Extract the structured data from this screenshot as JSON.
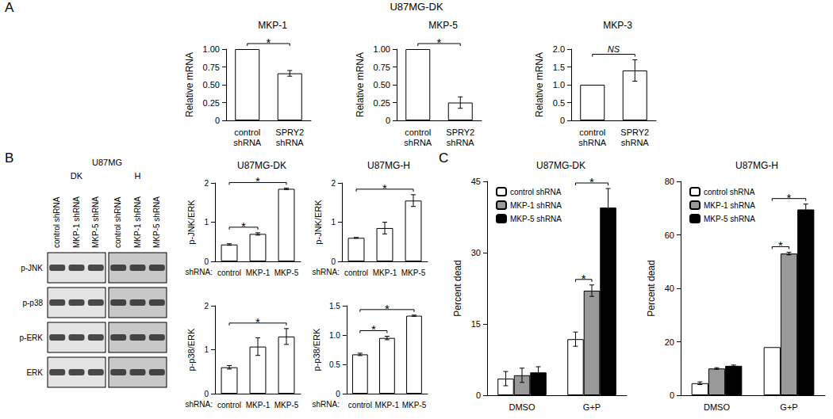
{
  "chart_data": [
    {
      "type": "bar",
      "title": "MKP-1",
      "y_label": "Relative mRNA",
      "categories": [
        "control shRNA",
        "SPRY2 shRNA"
      ],
      "values": [
        1.0,
        0.66
      ],
      "errors": [
        0,
        0.04
      ],
      "color": "#ffffff",
      "ylim": [
        0,
        1
      ],
      "yticks": [
        0,
        0.25,
        {
          "value": 0.5,
          "label": "0.50"
        },
        0.75,
        {
          "value": 1,
          "label": "1.00"
        }
      ],
      "grid": false,
      "annotations": [
        {
          "text": "*",
          "from": "control shRNA",
          "to": "SPRY2 shRNA"
        }
      ]
    },
    {
      "type": "bar",
      "title": "MKP-5",
      "y_label": "Relative mRNA",
      "categories": [
        "control shRNA",
        "SPRY2 shRNA"
      ],
      "values": [
        1.0,
        0.25
      ],
      "errors": [
        0,
        0.08
      ],
      "color": "#ffffff",
      "ylim": [
        0,
        1
      ],
      "yticks": [
        0,
        0.25,
        {
          "value": 0.5,
          "label": "0.50"
        },
        0.75,
        {
          "value": 1,
          "label": "1.00"
        }
      ],
      "grid": false,
      "annotations": [
        {
          "text": "*",
          "from": "control shRNA",
          "to": "SPRY2 shRNA"
        }
      ]
    },
    {
      "type": "bar",
      "title": "MKP-3",
      "y_label": "Relative mRNA",
      "categories": [
        "control shRNA",
        "SPRY2 shRNA"
      ],
      "values": [
        1.0,
        1.4
      ],
      "errors": [
        0,
        0.3
      ],
      "color": "#ffffff",
      "ylim": [
        0,
        2
      ],
      "yticks": [
        0,
        0.5,
        {
          "value": 1,
          "label": "1.0"
        },
        1.5,
        {
          "value": 2,
          "label": "2.0"
        }
      ],
      "grid": false,
      "annotations": [
        {
          "text": "NS",
          "from": "control shRNA",
          "to": "SPRY2 shRNA"
        }
      ]
    },
    {
      "type": "bar",
      "title": "U87MG-DK",
      "y_label": "p-JNK/ERK",
      "x_label": "shRNA:",
      "categories": [
        "control",
        "MKP-1",
        "MKP-5"
      ],
      "values": [
        0.43,
        0.7,
        1.85
      ],
      "errors": [
        0.02,
        0.03,
        0.02
      ],
      "color": "#ffffff",
      "ylim": [
        0,
        2
      ],
      "yticks": [
        0,
        1,
        2
      ],
      "grid": false,
      "annotations": [
        {
          "text": "*",
          "from": "control",
          "to": "MKP-1"
        },
        {
          "text": "*",
          "from": "control",
          "to": "MKP-5"
        }
      ]
    },
    {
      "type": "bar",
      "title": "U87MG-H",
      "y_label": "p-JNK/ERK",
      "x_label": "shRNA:",
      "categories": [
        "control",
        "MKP-1",
        "MKP-5"
      ],
      "values": [
        0.6,
        0.85,
        1.55
      ],
      "errors": [
        0.01,
        0.15,
        0.15
      ],
      "color": "#ffffff",
      "ylim": [
        0,
        2
      ],
      "yticks": [
        0,
        1,
        2
      ],
      "grid": false,
      "annotations": [
        {
          "text": "*",
          "from": "control",
          "to": "MKP-5"
        }
      ]
    },
    {
      "type": "bar",
      "y_label": "p-p38/ERK",
      "x_label": "shRNA:",
      "categories": [
        "control",
        "MKP-1",
        "MKP-5"
      ],
      "values": [
        0.6,
        1.07,
        1.3
      ],
      "errors": [
        0.04,
        0.2,
        0.18
      ],
      "color": "#ffffff",
      "ylim": [
        0,
        2
      ],
      "yticks": [
        0,
        1,
        2
      ],
      "grid": false,
      "annotations": [
        {
          "text": "*",
          "from": "control",
          "to": "MKP-5"
        }
      ]
    },
    {
      "type": "bar",
      "y_label": "p-p38/ERK",
      "x_label": "shRNA:",
      "categories": [
        "control",
        "MKP-1",
        "MKP-5"
      ],
      "values": [
        0.67,
        0.95,
        1.33
      ],
      "errors": [
        0.02,
        0.03,
        0.01
      ],
      "color": "#ffffff",
      "ylim": [
        0,
        1.5
      ],
      "yticks": [
        0,
        0.5,
        {
          "value": 1,
          "label": "1.0"
        },
        1.5
      ],
      "grid": false,
      "annotations": [
        {
          "text": "*",
          "from": "control",
          "to": "MKP-1"
        },
        {
          "text": "*",
          "from": "control",
          "to": "MKP-5"
        }
      ]
    },
    {
      "type": "bar",
      "title": "U87MG-DK",
      "y_label": "Percent dead",
      "categories": [
        "DMSO",
        "G+P"
      ],
      "series": [
        {
          "name": "control shRNA",
          "color": "#ffffff",
          "values": [
            3.5,
            11.8
          ],
          "errors": [
            1.5,
            1.5
          ]
        },
        {
          "name": "MKP-1 shRNA",
          "color": "#999999",
          "values": [
            4.2,
            22
          ],
          "errors": [
            1.5,
            1.2
          ]
        },
        {
          "name": "MKP-5 shRNA",
          "color": "#000000",
          "values": [
            4.8,
            39.5
          ],
          "errors": [
            1.2,
            4
          ]
        }
      ],
      "ylim": [
        0,
        45
      ],
      "yticks": [
        0,
        15,
        30,
        45
      ],
      "grid": false,
      "legend": "top-left",
      "annotations": [
        {
          "text": "*",
          "category": "G+P",
          "from": "control shRNA",
          "to": "MKP-1 shRNA"
        },
        {
          "text": "*",
          "category": "G+P",
          "from": "control shRNA",
          "to": "MKP-5 shRNA"
        }
      ]
    },
    {
      "type": "bar",
      "title": "U87MG-H",
      "y_label": "Percent dead",
      "categories": [
        "DMSO",
        "G+P"
      ],
      "series": [
        {
          "name": "control shRNA",
          "color": "#ffffff",
          "values": [
            4.5,
            18
          ],
          "errors": [
            0.5,
            0
          ]
        },
        {
          "name": "MKP-1 shRNA",
          "color": "#999999",
          "values": [
            10,
            53
          ],
          "errors": [
            0.3,
            0.5
          ]
        },
        {
          "name": "MKP-5 shRNA",
          "color": "#000000",
          "values": [
            11,
            69.5
          ],
          "errors": [
            0.3,
            2
          ]
        }
      ],
      "ylim": [
        0,
        80
      ],
      "yticks": [
        0,
        20,
        40,
        60,
        80
      ],
      "grid": false,
      "legend": "top-left",
      "annotations": [
        {
          "text": "*",
          "category": "G+P",
          "from": "control shRNA",
          "to": "MKP-1 shRNA"
        },
        {
          "text": "*",
          "category": "G+P",
          "from": "control shRNA",
          "to": "MKP-5 shRNA"
        }
      ]
    }
  ],
  "figure": {
    "panel_labels": [
      "A",
      "B",
      "C"
    ],
    "heading": "U87MG-DK",
    "blot": {
      "title": "U87MG",
      "groups": [
        {
          "name": "DK",
          "lanes": [
            "control shRNA",
            "MKP-1 shRNA",
            "MKP-5 shRNA"
          ]
        },
        {
          "name": "H",
          "lanes": [
            "control shRNA",
            "MKP-1 shRNA",
            "MKP-5 shRNA"
          ]
        }
      ],
      "rows": [
        "p-JNK",
        "p-p38",
        "p-ERK",
        "ERK"
      ]
    }
  }
}
